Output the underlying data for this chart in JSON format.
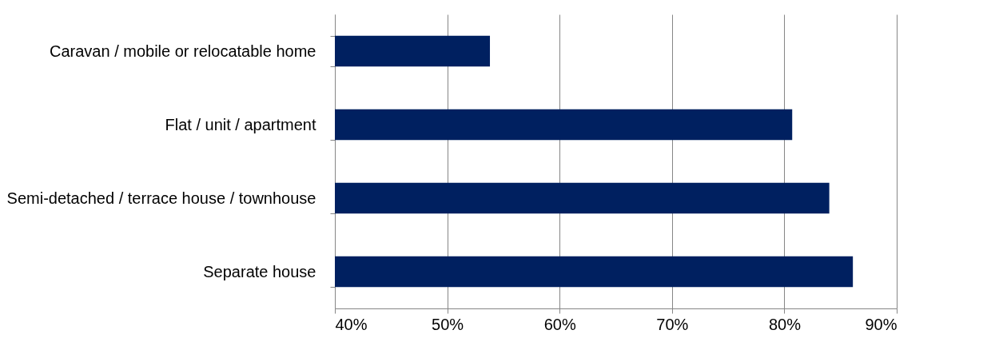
{
  "chart_data": {
    "type": "bar",
    "orientation": "horizontal",
    "categories": [
      "Caravan / mobile or relocatable home",
      "Flat / unit / apartment",
      "Semi-detached / terrace house / townhouse",
      "Separate house"
    ],
    "values": [
      53.8,
      80.7,
      84.0,
      86.1
    ],
    "color": "#002060",
    "xlim": [
      40,
      90
    ],
    "xticks": [
      {
        "value": 40,
        "label": "40%"
      },
      {
        "value": 50,
        "label": "50%"
      },
      {
        "value": 60,
        "label": "60%"
      },
      {
        "value": 70,
        "label": "70%"
      },
      {
        "value": 80,
        "label": "80%"
      },
      {
        "value": 90,
        "label": "90%"
      }
    ],
    "grid": "x"
  }
}
